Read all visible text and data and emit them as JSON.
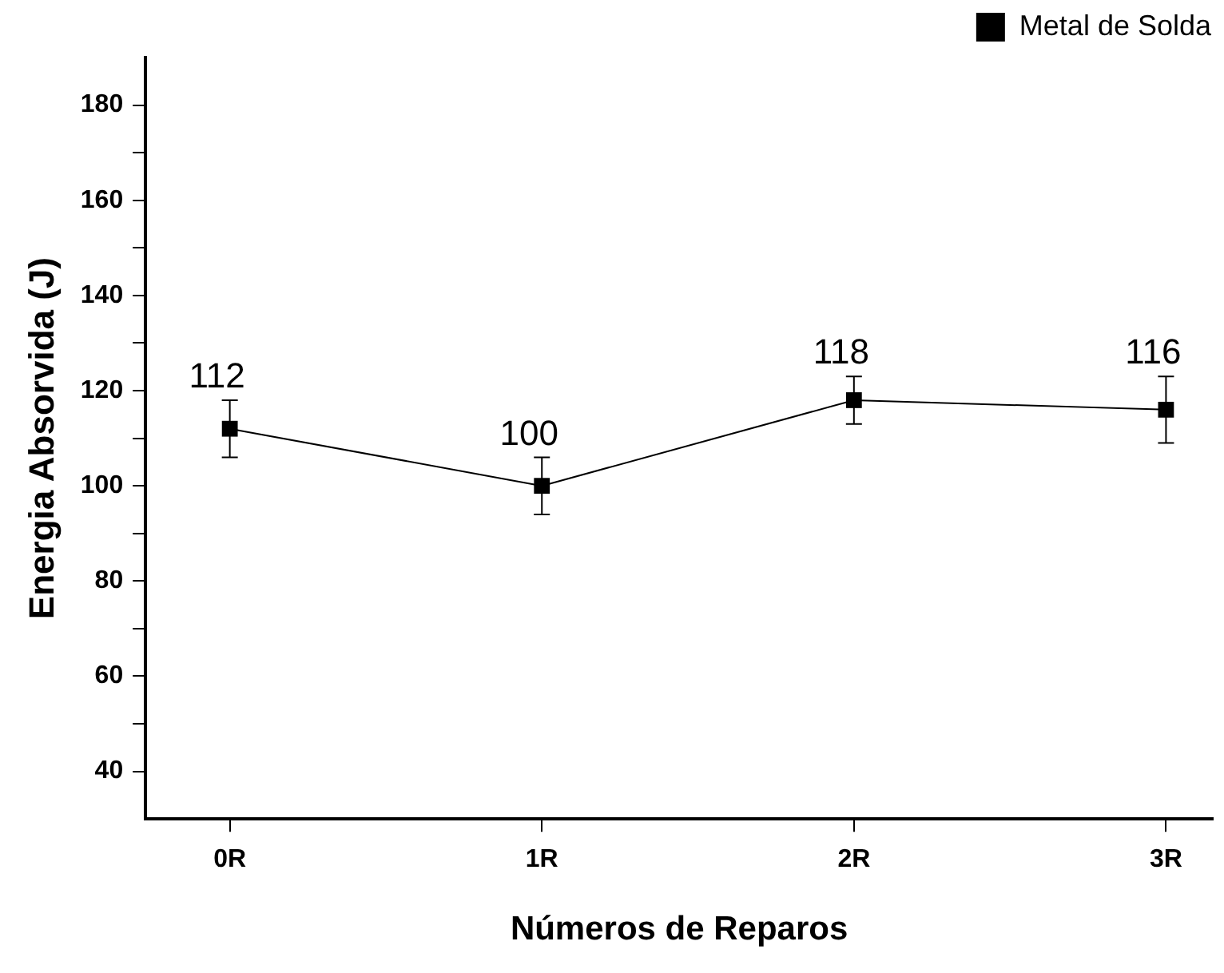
{
  "chart_data": {
    "type": "line",
    "xlabel": "Números de Reparos",
    "ylabel": "Energia Absorvida (J)",
    "categories": [
      "0R",
      "1R",
      "2R",
      "3R"
    ],
    "series": [
      {
        "name": "Metal de Solda",
        "color": "#000000",
        "values": [
          112,
          100,
          118,
          116
        ],
        "errors": [
          6,
          6,
          5,
          7
        ]
      }
    ],
    "ylim": [
      30,
      190
    ],
    "yticks": [
      40,
      {
        "value": 50,
        "label": null
      },
      60,
      {
        "value": 70,
        "label": null
      },
      80,
      {
        "value": 90,
        "label": null
      },
      100,
      {
        "value": 110,
        "label": null
      },
      120,
      {
        "value": 130,
        "label": null
      },
      140,
      {
        "value": 150,
        "label": null
      },
      160,
      {
        "value": 170,
        "label": null
      },
      180
    ],
    "data_labels": true,
    "legend": "top right",
    "marker": "square",
    "line_style": "solid",
    "grid": false
  }
}
